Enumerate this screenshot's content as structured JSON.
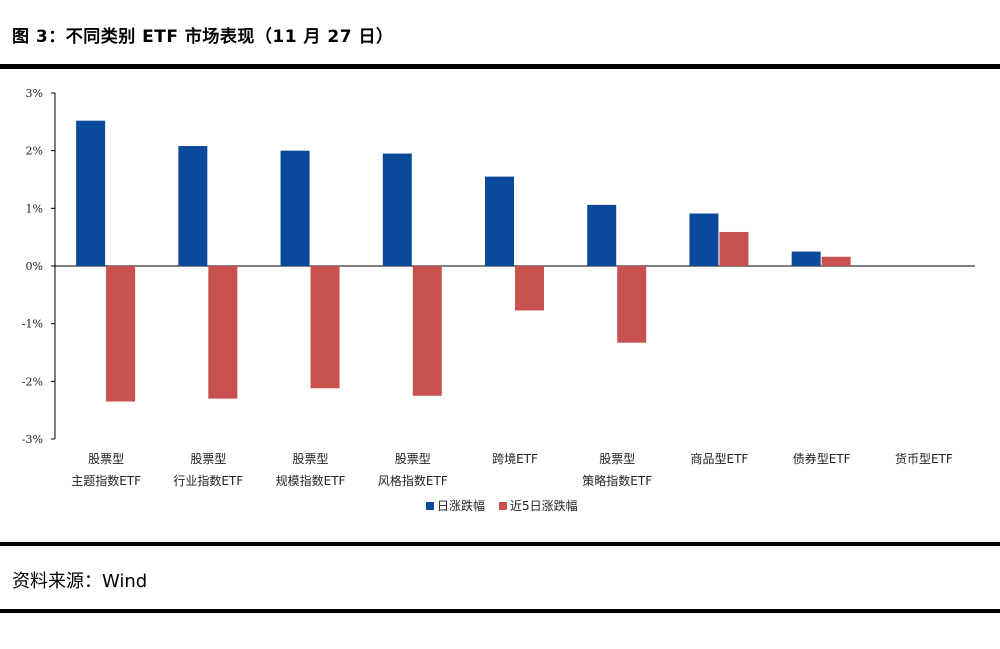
{
  "figure": {
    "title": "图 3：不同类别 ETF 市场表现（11 月 27 日）",
    "source": "资料来源：Wind"
  },
  "chart_data": {
    "type": "bar",
    "categories": [
      [
        "股票型",
        "主题指数ETF"
      ],
      [
        "股票型",
        "行业指数ETF"
      ],
      [
        "股票型",
        "规模指数ETF"
      ],
      [
        "股票型",
        "风格指数ETF"
      ],
      [
        "跨境ETF"
      ],
      [
        "股票型",
        "策略指数ETF"
      ],
      [
        "商品型ETF"
      ],
      [
        "债券型ETF"
      ],
      [
        "货币型ETF"
      ]
    ],
    "series": [
      {
        "name": "日涨跌幅",
        "color": "#0B4A9A",
        "values": [
          2.52,
          2.08,
          2.0,
          1.95,
          1.55,
          1.06,
          0.91,
          0.25,
          0.0
        ]
      },
      {
        "name": "近5日涨跌幅",
        "color": "#C8504F",
        "values": [
          -2.35,
          -2.3,
          -2.12,
          -2.25,
          -0.77,
          -1.33,
          0.59,
          0.16,
          0.0
        ]
      }
    ],
    "yticks": [
      "3%",
      "2%",
      "1%",
      "0%",
      "-1%",
      "-2%",
      "-3%"
    ],
    "ylim": [
      -3,
      3
    ],
    "legend_position": "bottom",
    "grid": false
  }
}
